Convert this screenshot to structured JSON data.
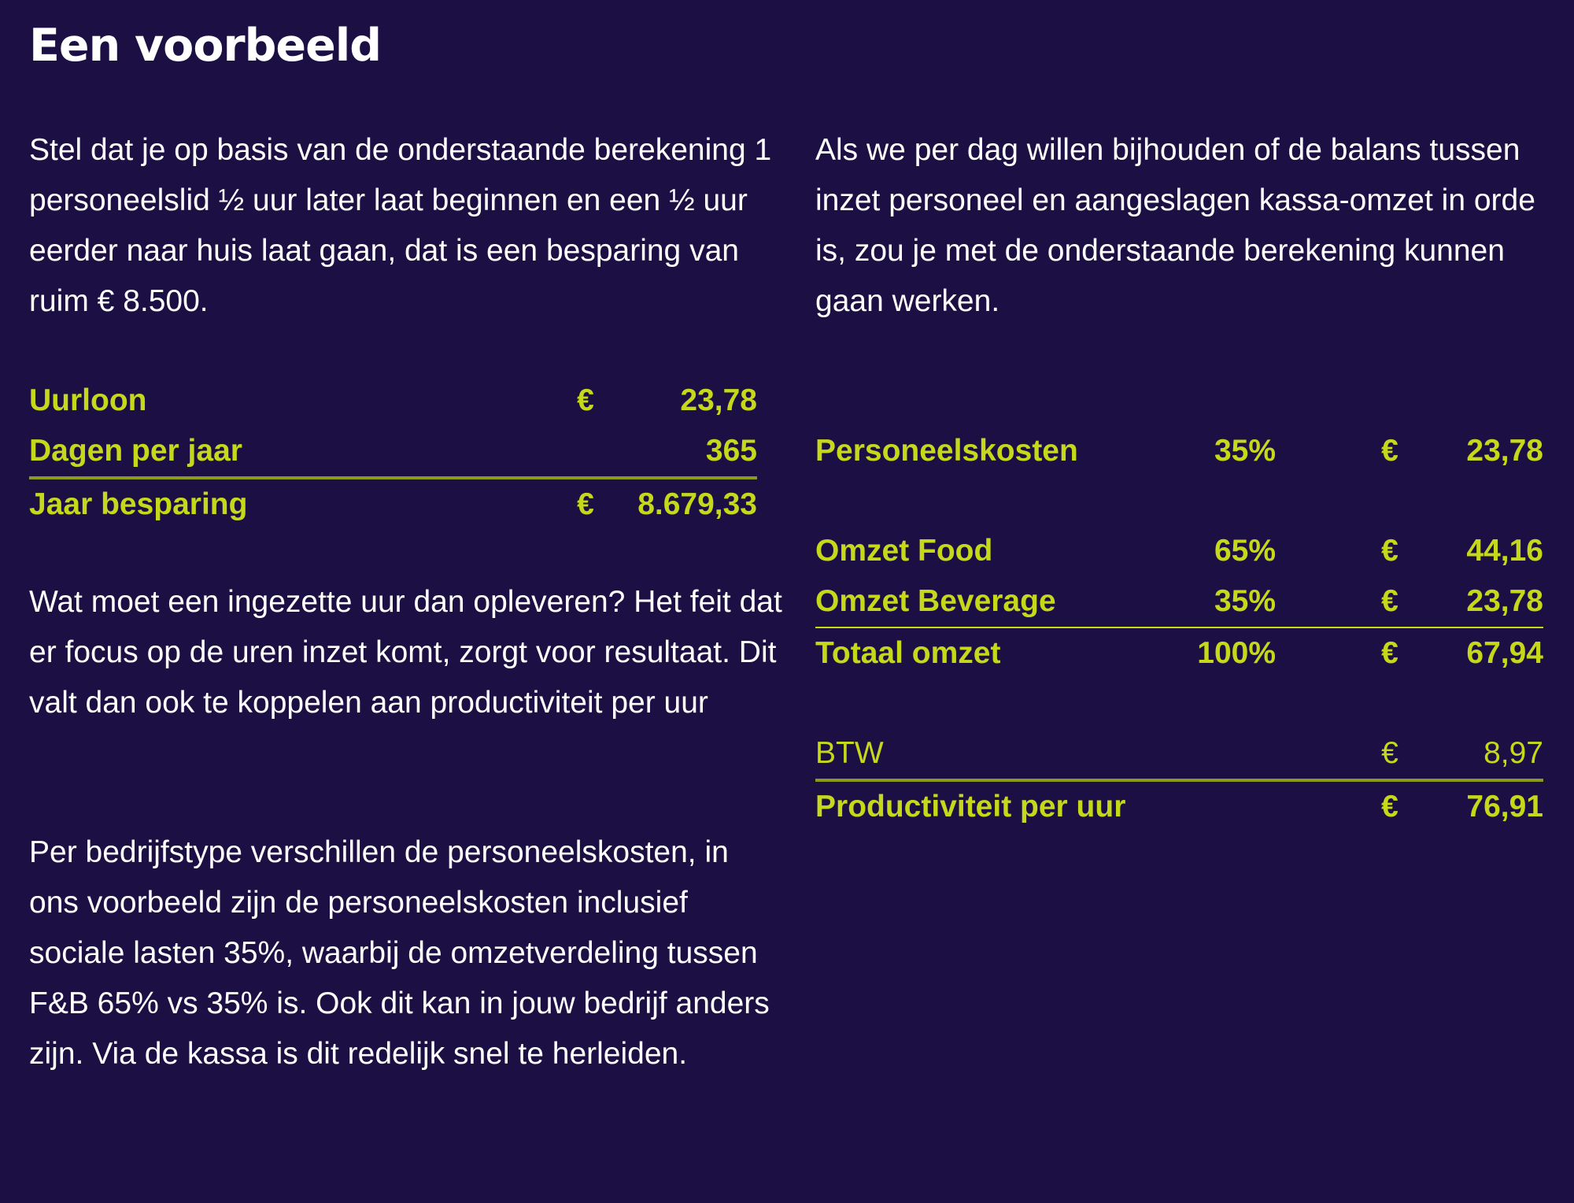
{
  "title": "Een voorbeeld",
  "left": {
    "para1": "Stel dat je op basis van de onderstaande berekening 1 personeelslid ½ uur later laat beginnen en een ½ uur eerder naar huis laat gaan, dat is een besparing van ruim € 8.500.",
    "table": {
      "uurloon": {
        "label": "Uurloon",
        "currency": "€",
        "value": "23,78"
      },
      "dagen": {
        "label": "Dagen per jaar",
        "value": "365"
      },
      "jaar": {
        "label": "Jaar besparing",
        "currency": "€",
        "value": "8.679,33"
      }
    },
    "para2": "Wat moet een ingezette uur dan opleveren? Het feit dat er focus op de uren inzet komt, zorgt voor resultaat. Dit valt dan ook te koppelen aan productiviteit per uur",
    "para3": "Per bedrijfstype verschillen de personeelskosten, in ons voorbeeld zijn de personeelskosten inclusief sociale lasten 35%, waarbij de omzetverdeling tussen F&B 65% vs 35% is. Ook dit kan in jouw bedrijf anders zijn. Via de kassa is dit redelijk snel te herleiden."
  },
  "right": {
    "para1": "Als we per dag willen bijhouden of de balans tussen inzet personeel en aangeslagen kassa-omzet in orde is, zou je met de onderstaande berekening kunnen gaan werken.",
    "table": {
      "personeel": {
        "label": "Personeelskosten",
        "pct": "35%",
        "currency": "€",
        "value": "23,78"
      },
      "food": {
        "label": "Omzet Food",
        "pct": "65%",
        "currency": "€",
        "value": "44,16"
      },
      "beverage": {
        "label": "Omzet Beverage",
        "pct": "35%",
        "currency": "€",
        "value": "23,78"
      },
      "totaal": {
        "label": "Totaal omzet",
        "pct": "100%",
        "currency": "€",
        "value": "67,94"
      },
      "btw": {
        "label": "BTW",
        "currency": "€",
        "value": "8,97"
      },
      "productiviteit": {
        "label": "Productiviteit per uur",
        "currency": "€",
        "value": "76,91"
      }
    }
  },
  "colors": {
    "background": "#1c0f44",
    "accent": "#c5d81a",
    "text": "#ffffff"
  }
}
